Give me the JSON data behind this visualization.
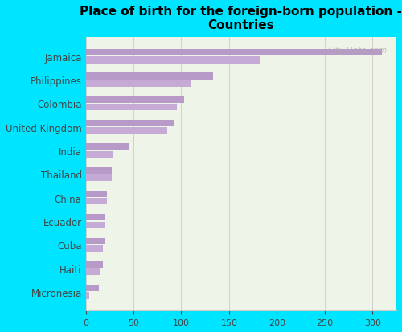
{
  "title": "Place of birth for the foreign-born population -\nCountries",
  "categories": [
    "Jamaica",
    "Philippines",
    "Colombia",
    "United Kingdom",
    "India",
    "Thailand",
    "China",
    "Ecuador",
    "Cuba",
    "Haiti",
    "Micronesia"
  ],
  "values_top": [
    310,
    133,
    103,
    92,
    45,
    27,
    22,
    20,
    20,
    18,
    14
  ],
  "values_bottom": [
    182,
    110,
    95,
    85,
    28,
    27,
    22,
    20,
    18,
    15,
    4
  ],
  "bar_color_top": "#b89ac8",
  "bar_color_bottom": "#c4aad4",
  "bg_color": "#00e5ff",
  "plot_bg": "#eef5e8",
  "watermark": "City-Data.com",
  "xlim": [
    0,
    325
  ],
  "xticks": [
    0,
    50,
    100,
    150,
    200,
    250,
    300
  ],
  "title_fontsize": 11,
  "tick_fontsize": 8,
  "ylabel_fontsize": 8.5
}
